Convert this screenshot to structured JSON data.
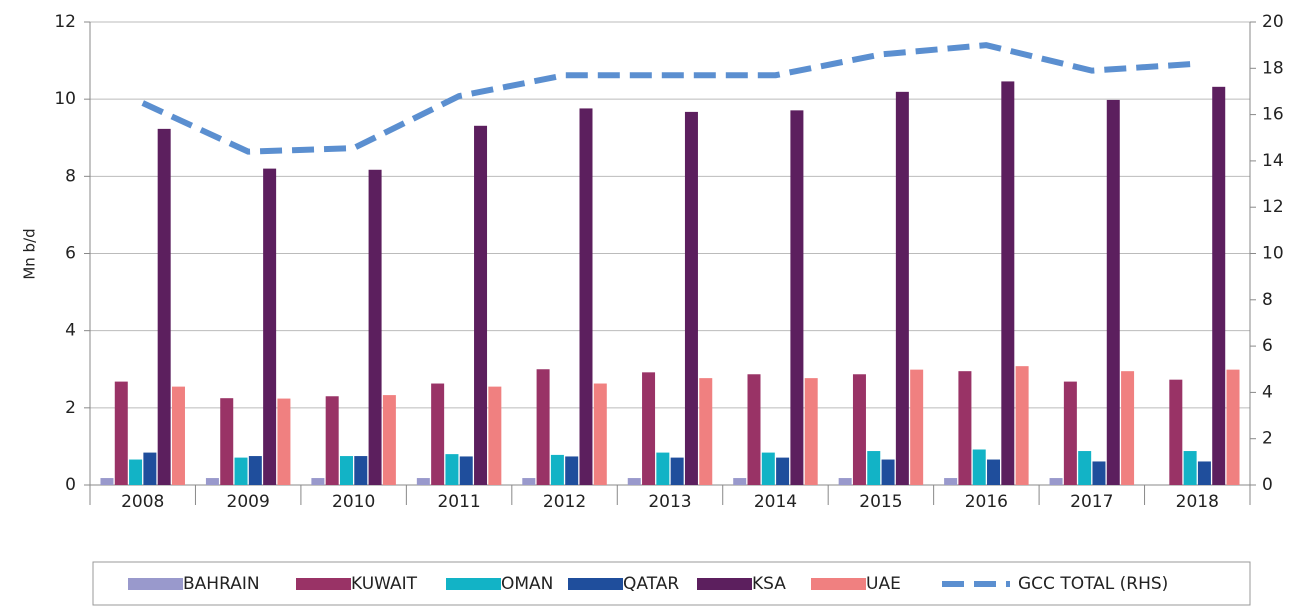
{
  "chart_data": {
    "type": "bar",
    "y_label": "Mn b/d",
    "categories": [
      "2008",
      "2009",
      "2010",
      "2011",
      "2012",
      "2013",
      "2014",
      "2015",
      "2016",
      "2017",
      "2018"
    ],
    "series": [
      {
        "name": "BAHRAIN",
        "color": "#9999cc",
        "values": [
          0.18,
          0.18,
          0.18,
          0.18,
          0.18,
          0.18,
          0.18,
          0.18,
          0.18,
          0.18,
          null
        ]
      },
      {
        "name": "KUWAIT",
        "color": "#993366",
        "values": [
          2.68,
          2.25,
          2.3,
          2.63,
          3.0,
          2.92,
          2.87,
          2.87,
          2.95,
          2.68,
          2.73
        ]
      },
      {
        "name": "OMAN",
        "color": "#12b3c6",
        "values": [
          0.66,
          0.71,
          0.75,
          0.8,
          0.78,
          0.84,
          0.84,
          0.88,
          0.92,
          0.88,
          0.88
        ]
      },
      {
        "name": "QATAR",
        "color": "#1f4e9c",
        "values": [
          0.84,
          0.75,
          0.75,
          0.74,
          0.74,
          0.71,
          0.71,
          0.66,
          0.66,
          0.61,
          0.61
        ]
      },
      {
        "name": "KSA",
        "color": "#5c1f5e",
        "values": [
          9.23,
          8.2,
          8.17,
          9.31,
          9.76,
          9.67,
          9.71,
          10.19,
          10.46,
          9.98,
          10.32
        ]
      },
      {
        "name": "UAE",
        "color": "#f08080",
        "values": [
          2.55,
          2.24,
          2.33,
          2.55,
          2.63,
          2.77,
          2.77,
          2.99,
          3.08,
          2.95,
          2.99
        ]
      },
      {
        "name": "GCC TOTAL (RHS)",
        "color": "#5b8fd0",
        "type": "line",
        "axis": "y2",
        "values": [
          16.5,
          14.4,
          14.55,
          16.8,
          17.7,
          17.7,
          17.7,
          18.6,
          19.0,
          17.9,
          18.2
        ]
      }
    ],
    "ylim": [
      0,
      12
    ],
    "yticks": [
      0,
      2,
      4,
      6,
      8,
      10,
      12
    ],
    "y2lim": [
      0,
      20
    ],
    "y2ticks": [
      0,
      2,
      4,
      6,
      8,
      10,
      12,
      14,
      16,
      18,
      20
    ],
    "grid": true,
    "legend": "bottom"
  }
}
